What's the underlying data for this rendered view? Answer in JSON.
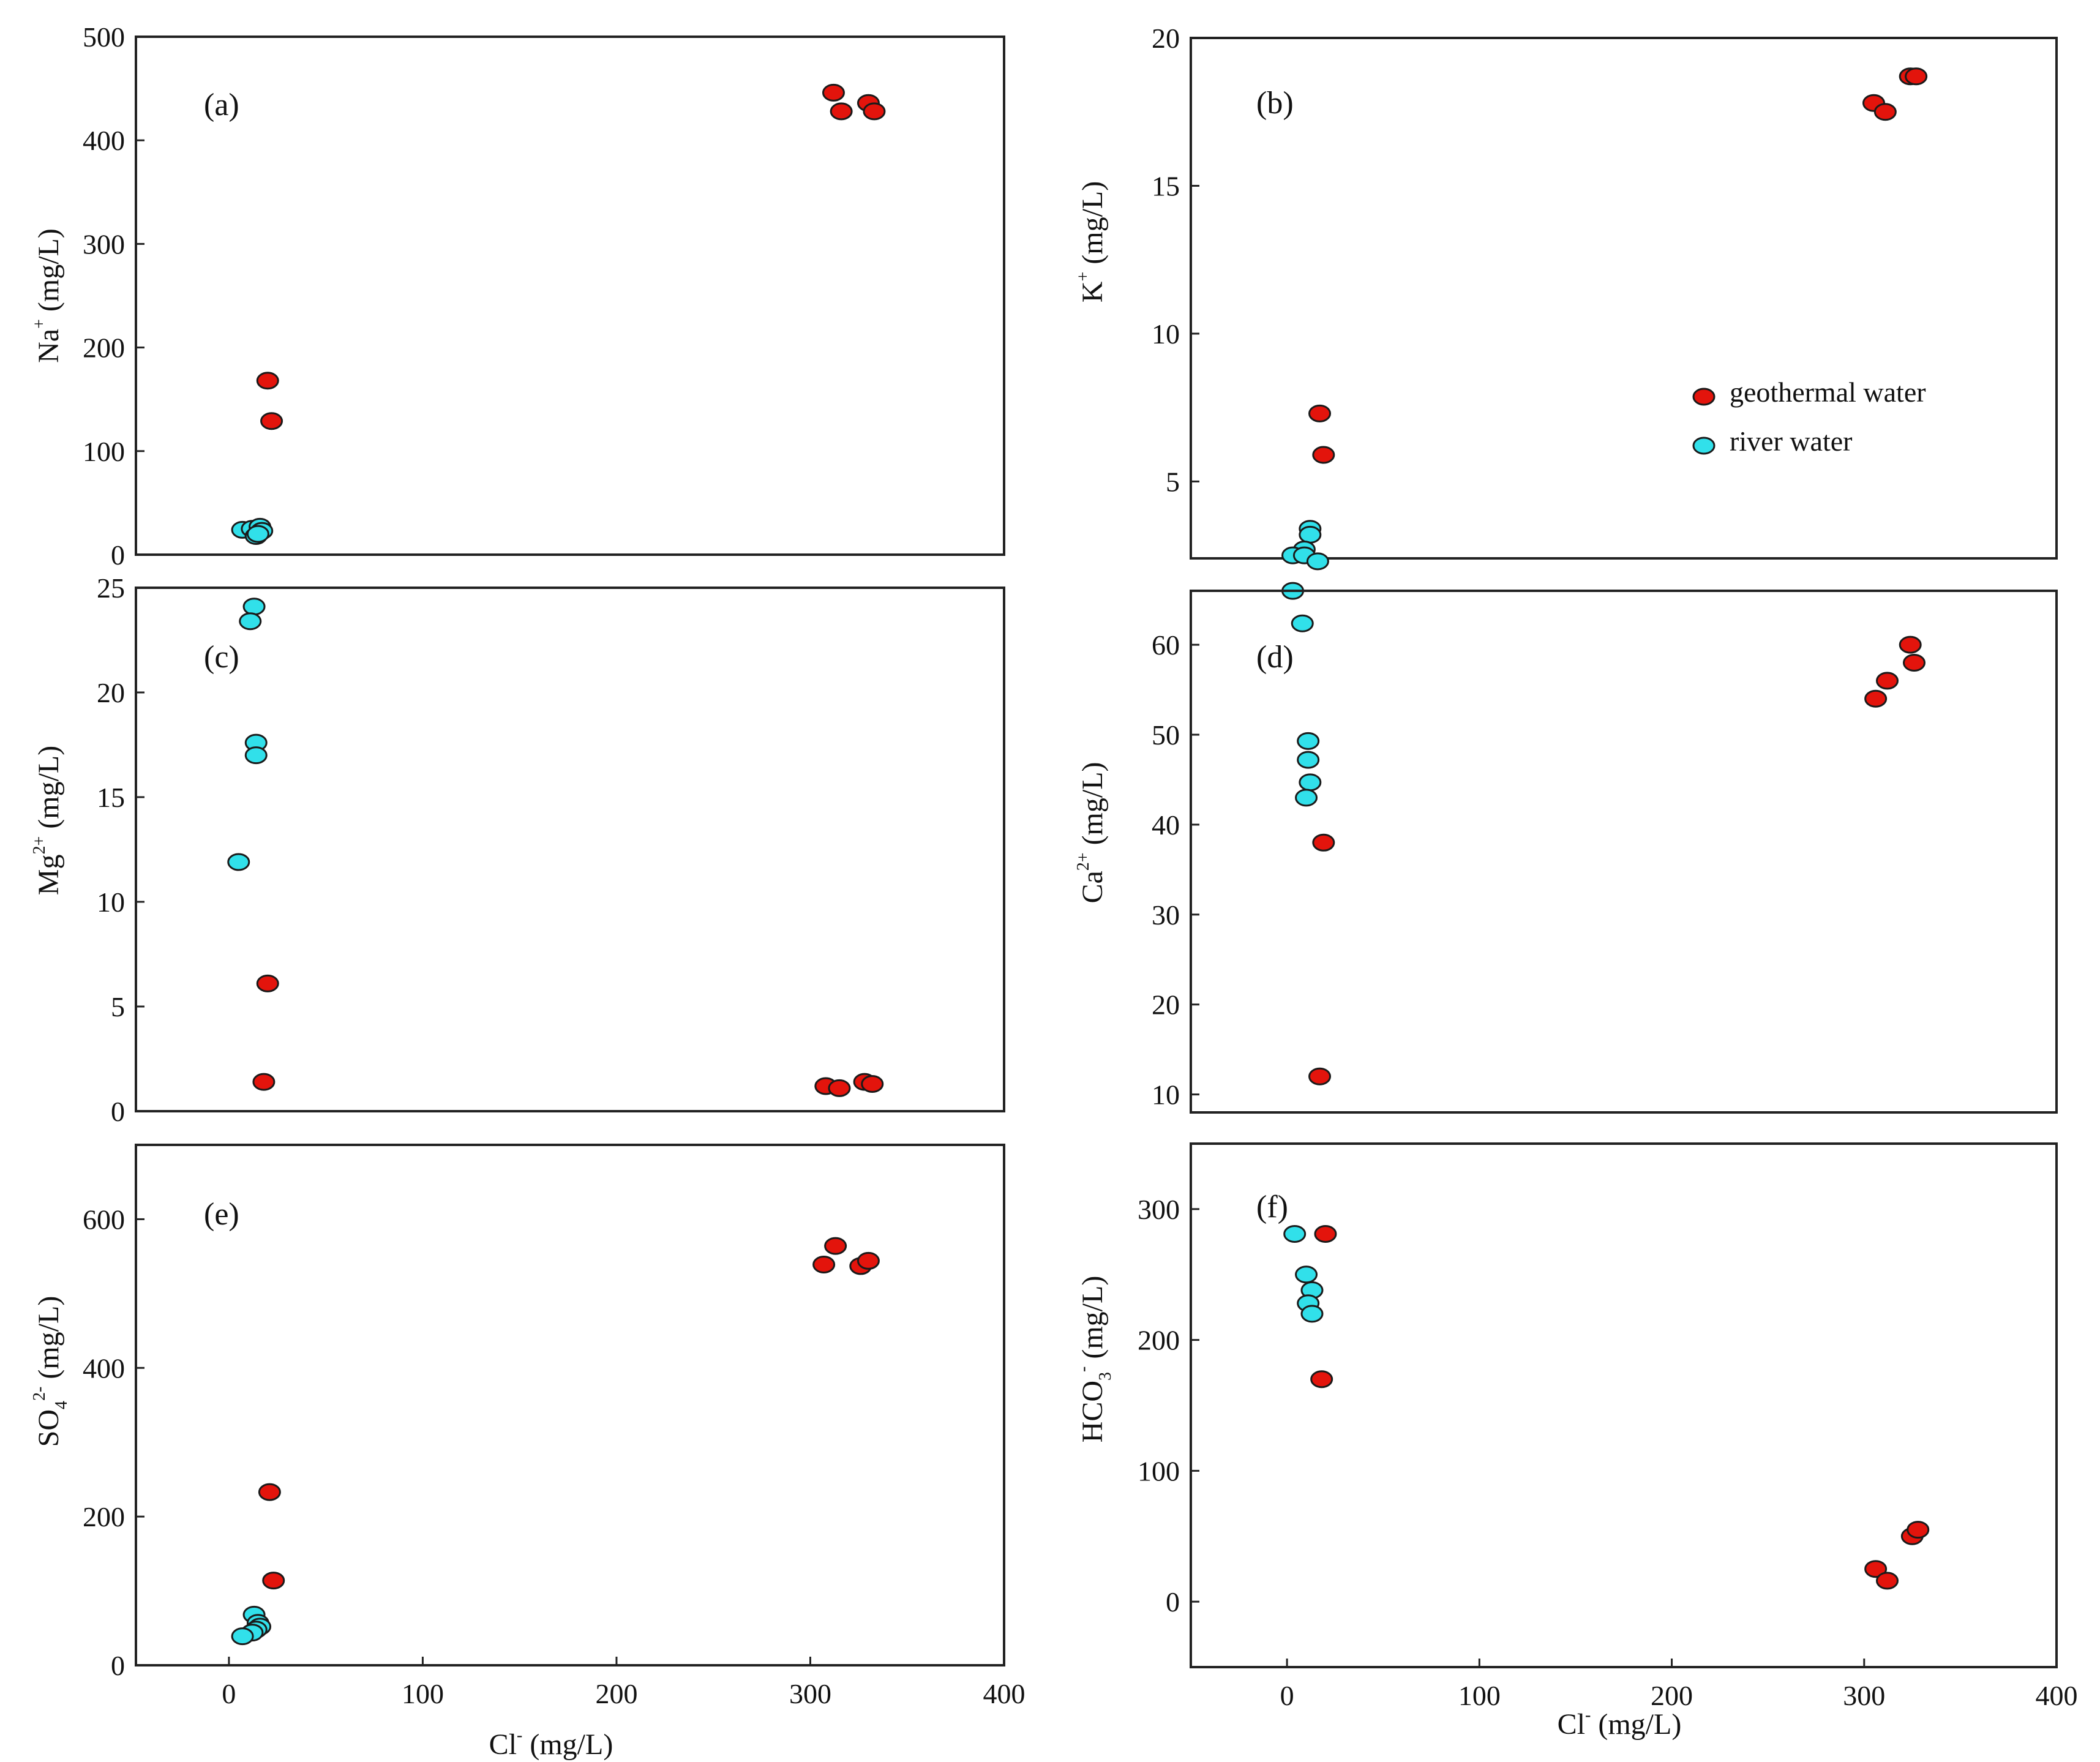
{
  "colors": {
    "geothermal": "#e3140c",
    "river": "#31e0ea",
    "marker_edge": "#1a1a1a",
    "frame": "#222222"
  },
  "legend": [
    {
      "label": "geothermal water",
      "color": "#e3140c"
    },
    {
      "label": "river water",
      "color": "#31e0ea"
    }
  ],
  "chart_data": [
    {
      "id": "a",
      "type": "scatter",
      "title": "(a)",
      "xlabel": {
        "base": "Cl",
        "sup": "-",
        "unit": " (mg/L)"
      },
      "ylabel": {
        "base": "Na",
        "sup": "+",
        "unit": " (mg/L)"
      },
      "xlim": [
        -48,
        400
      ],
      "ylim": [
        0,
        500
      ],
      "xticks": [],
      "yticks": [
        0,
        100,
        200,
        300,
        400,
        500
      ],
      "series": [
        {
          "name": "geothermal water",
          "x": [
            20,
            22,
            312,
            316,
            330,
            333
          ],
          "y": [
            168,
            129,
            446,
            428,
            436,
            428
          ]
        },
        {
          "name": "river water",
          "x": [
            7,
            12,
            16,
            17,
            14,
            15
          ],
          "y": [
            24,
            25,
            27,
            23,
            18,
            20
          ]
        }
      ]
    },
    {
      "id": "b",
      "type": "scatter",
      "title": "(b)",
      "xlabel": {
        "base": "Cl",
        "sup": "-",
        "unit": " (mg/L)"
      },
      "ylabel": {
        "base": "K",
        "sup": "+",
        "unit": " (mg/L)"
      },
      "xlim": [
        -50,
        400
      ],
      "ylim": [
        2.4,
        20
      ],
      "xticks": [],
      "yticks": [
        5,
        10,
        15,
        20
      ],
      "series": [
        {
          "name": "geothermal water",
          "x": [
            17,
            19,
            305,
            311,
            324,
            327
          ],
          "y": [
            7.3,
            5.9,
            17.8,
            17.5,
            18.7,
            18.7
          ]
        },
        {
          "name": "river water",
          "x": [
            12,
            12,
            9,
            3,
            9,
            16,
            3,
            8
          ],
          "y": [
            3.4,
            3.2,
            2.7,
            2.5,
            2.5,
            2.3,
            1.3,
            0.2
          ]
        }
      ]
    },
    {
      "id": "c",
      "type": "scatter",
      "title": "(c)",
      "xlabel": {
        "base": "Cl",
        "sup": "-",
        "unit": " (mg/L)"
      },
      "ylabel": {
        "base": "Mg",
        "sup": "2+",
        "unit": " (mg/L)"
      },
      "xlim": [
        -48,
        400
      ],
      "ylim": [
        0,
        25
      ],
      "xticks": [],
      "yticks": [
        0,
        5,
        10,
        15,
        20,
        25
      ],
      "series": [
        {
          "name": "geothermal water",
          "x": [
            20,
            18,
            308,
            315,
            328,
            332
          ],
          "y": [
            6.1,
            1.4,
            1.2,
            1.1,
            1.4,
            1.3
          ]
        },
        {
          "name": "river water",
          "x": [
            13,
            11,
            14,
            14,
            5
          ],
          "y": [
            24.1,
            23.4,
            17.6,
            17.0,
            11.9
          ]
        }
      ]
    },
    {
      "id": "d",
      "type": "scatter",
      "title": "(d)",
      "xlabel": {
        "base": "Cl",
        "sup": "-",
        "unit": " (mg/L)"
      },
      "ylabel": {
        "base": "Ca",
        "sup": "2+",
        "unit": " (mg/L)"
      },
      "xlim": [
        -50,
        400
      ],
      "ylim": [
        8,
        66
      ],
      "xticks": [],
      "yticks": [
        10,
        20,
        30,
        40,
        50,
        60
      ],
      "series": [
        {
          "name": "geothermal water",
          "x": [
            19,
            17,
            306,
            312,
            324,
            326
          ],
          "y": [
            38,
            12,
            54,
            56,
            60,
            58
          ]
        },
        {
          "name": "river water",
          "x": [
            11,
            11,
            12,
            10
          ],
          "y": [
            49.3,
            47.2,
            44.7,
            43
          ]
        }
      ]
    },
    {
      "id": "e",
      "type": "scatter",
      "title": "(e)",
      "xlabel": {
        "base": "Cl",
        "sup": "-",
        "unit": " (mg/L)"
      },
      "ylabel": {
        "base": "SO",
        "sub": "4",
        "sup": "2-",
        "unit": " (mg/L)"
      },
      "xlim": [
        -48,
        400
      ],
      "ylim": [
        0,
        700
      ],
      "xticks": [
        0,
        100,
        200,
        300,
        400
      ],
      "yticks": [
        0,
        200,
        400,
        600
      ],
      "series": [
        {
          "name": "geothermal water",
          "x": [
            21,
            23,
            307,
            313,
            326,
            330
          ],
          "y": [
            233,
            114,
            539,
            564,
            537,
            544
          ]
        },
        {
          "name": "river water",
          "x": [
            13,
            15,
            16,
            14,
            12,
            7
          ],
          "y": [
            68,
            57,
            52,
            48,
            44,
            39
          ]
        }
      ]
    },
    {
      "id": "f",
      "type": "scatter",
      "title": "(f)",
      "xlabel": {
        "base": "Cl",
        "sup": "-",
        "unit": " (mg/L)"
      },
      "ylabel": {
        "base": "HCO",
        "sub": "3",
        "sup": "-",
        "unit": " (mg/L)"
      },
      "xlim": [
        -50,
        400
      ],
      "ylim": [
        -50,
        350
      ],
      "xticks": [
        0,
        100,
        200,
        300,
        400
      ],
      "yticks": [
        0,
        100,
        200,
        300
      ],
      "series": [
        {
          "name": "geothermal water",
          "x": [
            20,
            18,
            306,
            312,
            325,
            328
          ],
          "y": [
            281,
            170,
            25,
            16,
            50,
            55
          ]
        },
        {
          "name": "river water",
          "x": [
            4,
            10,
            13,
            11,
            13
          ],
          "y": [
            281,
            250,
            238,
            228,
            220
          ]
        }
      ]
    }
  ]
}
